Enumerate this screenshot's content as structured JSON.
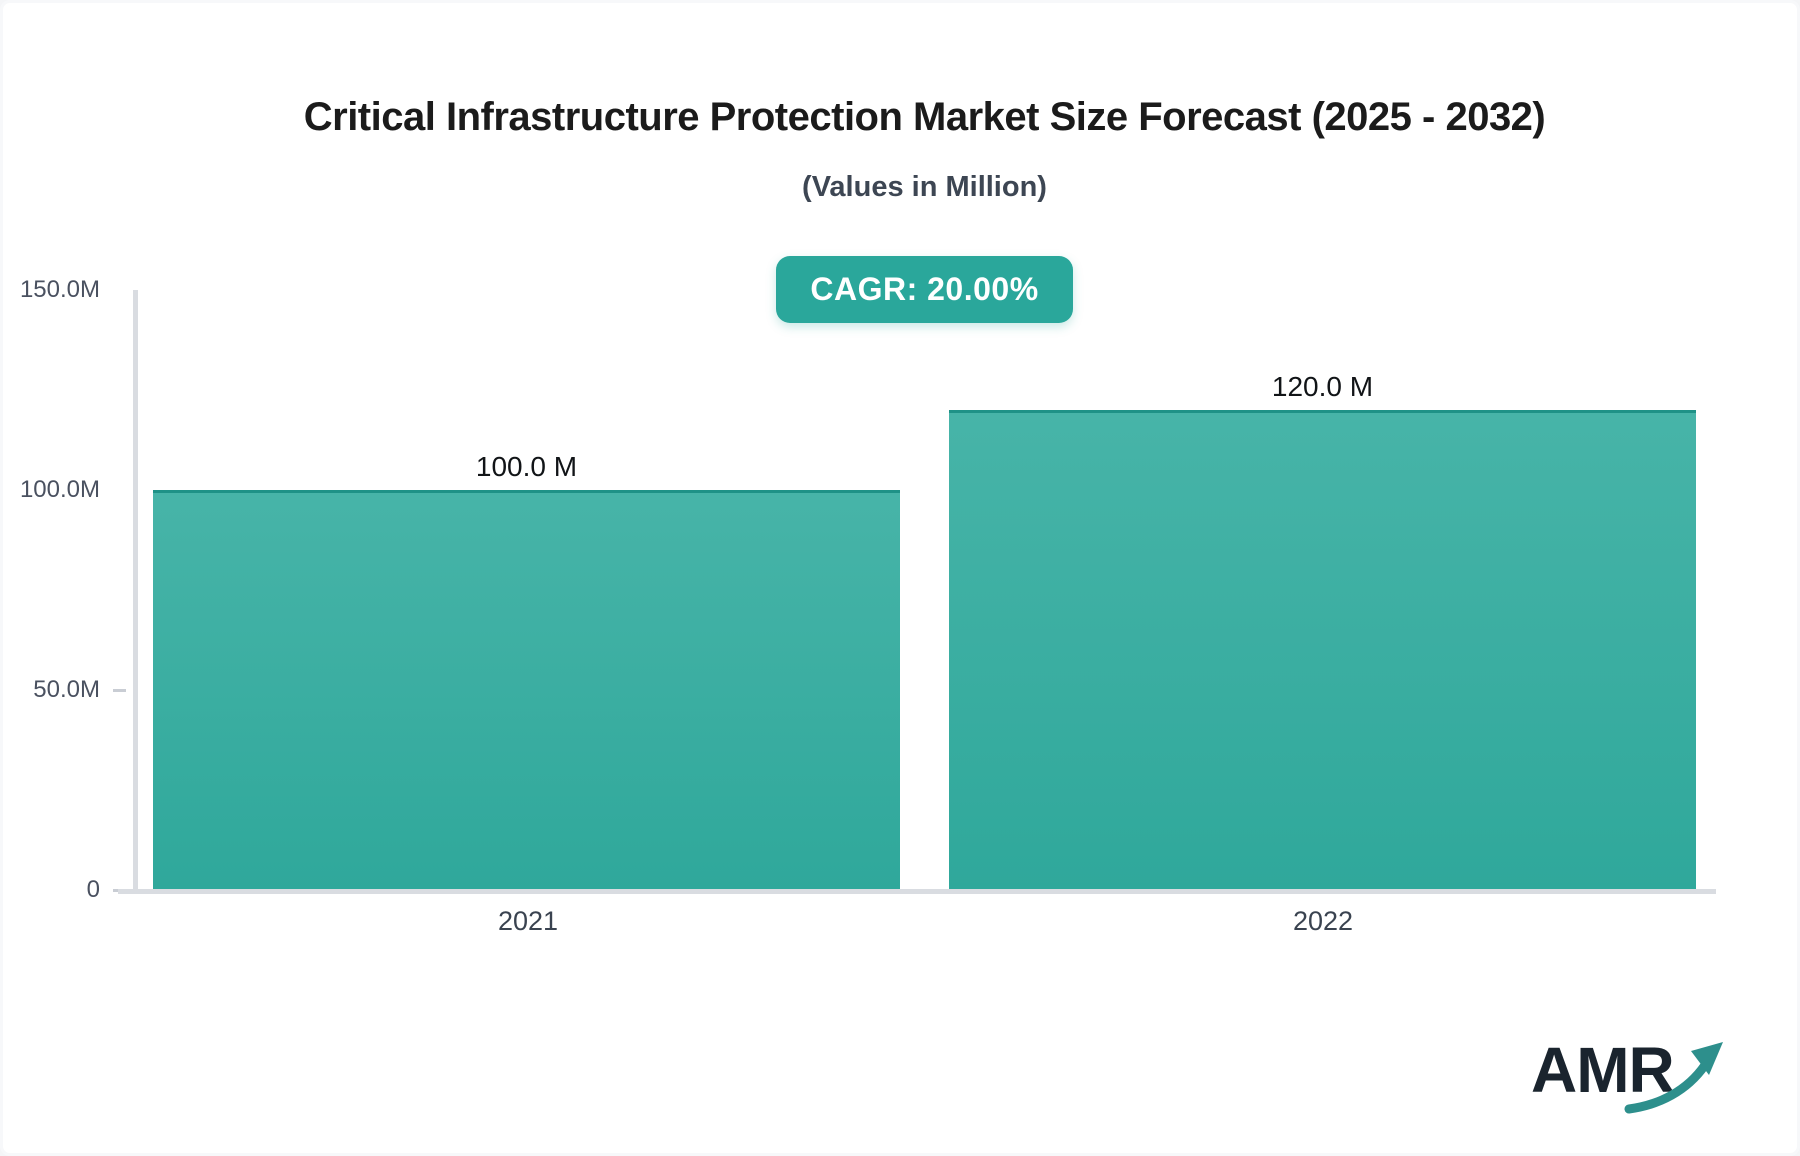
{
  "chart_data": {
    "type": "bar",
    "title": "Critical Infrastructure Protection Market Size Forecast (2025 - 2032)",
    "subtitle": "(Values in Million)",
    "badge": "CAGR: 20.00%",
    "categories": [
      "2021",
      "2022"
    ],
    "values": [
      100.0,
      120.0
    ],
    "value_labels": [
      "100.0 M",
      "120.0 M"
    ],
    "ylim": [
      0,
      150
    ],
    "ytick_labels": [
      "150.0M",
      "100.0M",
      "50.0M",
      "0"
    ],
    "grid": false,
    "legend": "none",
    "colors": {
      "bar_gradient_top": "#47b4a8",
      "bar_gradient_bottom": "#2fa89b",
      "bar_top_border": "#1f9287",
      "badge_background": "#2aa79b",
      "axis_line": "#d9dce1",
      "title_text": "#1b1b1b",
      "subtitle_text": "#3d4653",
      "tick_text": "#4a5160"
    }
  },
  "logo": {
    "text": "AMR",
    "arrow_color": "#2d8f8c"
  }
}
